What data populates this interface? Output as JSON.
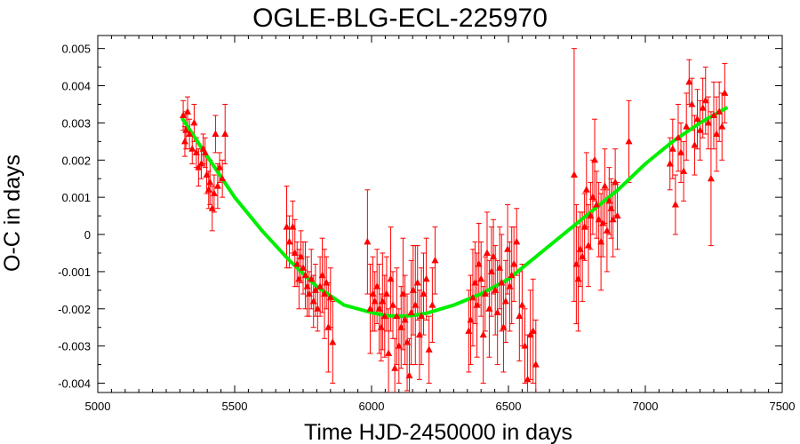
{
  "chart_data": {
    "type": "scatter",
    "title": "OGLE-BLG-ECL-225970",
    "xlabel": "Time HJD-2450000 in days",
    "ylabel": "O-C in days",
    "xlim": [
      5000,
      7500
    ],
    "ylim": [
      -0.00425,
      0.00535
    ],
    "x_ticks": [
      5000,
      5500,
      6000,
      6500,
      7000,
      7500
    ],
    "y_ticks": [
      -0.004,
      -0.003,
      -0.002,
      -0.001,
      0,
      0.001,
      0.002,
      0.003,
      0.004,
      0.005
    ],
    "x_tick_labels": [
      "5000",
      "5500",
      "6000",
      "6500",
      "7000",
      "7500"
    ],
    "y_tick_labels": [
      "-0.004",
      "-0.003",
      "-0.002",
      "-0.001",
      "0",
      "0.001",
      "0.002",
      "0.003",
      "0.004",
      "0.005"
    ],
    "grid": false,
    "colors": {
      "points": "#ff0000",
      "fit": "#00ee00",
      "axes": "#000000"
    },
    "series": [
      {
        "kind": "points_with_error_bars",
        "marker": "triangle",
        "x": [
          5312,
          5318,
          5322,
          5328,
          5335,
          5345,
          5352,
          5360,
          5368,
          5378,
          5385,
          5392,
          5398,
          5405,
          5410,
          5418,
          5425,
          5430,
          5438,
          5445,
          5455,
          5465,
          5690,
          5700,
          5712,
          5720,
          5728,
          5735,
          5742,
          5750,
          5758,
          5765,
          5772,
          5780,
          5788,
          5795,
          5803,
          5812,
          5820,
          5828,
          5835,
          5842,
          5850,
          5858,
          5985,
          5995,
          6005,
          6012,
          6020,
          6028,
          6035,
          6040,
          6048,
          6055,
          6062,
          6070,
          6078,
          6085,
          6092,
          6100,
          6108,
          6115,
          6122,
          6130,
          6138,
          6145,
          6152,
          6160,
          6168,
          6175,
          6182,
          6190,
          6200,
          6210,
          6222,
          6232,
          6355,
          6362,
          6370,
          6378,
          6385,
          6392,
          6400,
          6408,
          6415,
          6422,
          6430,
          6438,
          6445,
          6452,
          6460,
          6468,
          6475,
          6482,
          6490,
          6497,
          6505,
          6512,
          6520,
          6530,
          6540,
          6550,
          6560,
          6570,
          6580,
          6590,
          6600,
          6740,
          6748,
          6755,
          6762,
          6770,
          6778,
          6785,
          6792,
          6800,
          6808,
          6815,
          6822,
          6830,
          6838,
          6845,
          6852,
          6860,
          6868,
          6875,
          6882,
          6890,
          6898,
          6940,
          7090,
          7100,
          7110,
          7120,
          7130,
          7140,
          7150,
          7160,
          7170,
          7180,
          7190,
          7200,
          7210,
          7220,
          7230,
          7240,
          7250,
          7260,
          7270,
          7280,
          7290
        ],
        "y": [
          0.0032,
          0.0025,
          0.0028,
          0.0033,
          0.0027,
          0.0023,
          0.003,
          0.0022,
          0.0018,
          0.0019,
          0.0023,
          0.0022,
          0.0016,
          0.0012,
          0.0014,
          0.0007,
          0.0011,
          0.0027,
          0.0013,
          0.0018,
          0.0015,
          0.0027,
          0.0002,
          -0.0002,
          0.0002,
          -0.0005,
          -0.0008,
          -0.0012,
          -0.0006,
          -0.0009,
          -0.0011,
          -0.0014,
          -0.0016,
          -0.0012,
          -0.0018,
          -0.0015,
          -0.002,
          -0.0014,
          -0.0011,
          -0.0016,
          -0.0013,
          -0.0025,
          -0.0017,
          -0.0029,
          -0.0002,
          -0.002,
          -0.0016,
          -0.0018,
          -0.0014,
          -0.002,
          -0.0025,
          -0.0018,
          -0.0022,
          -0.0016,
          -0.0032,
          -0.0012,
          -0.0019,
          -0.0036,
          -0.0022,
          -0.003,
          -0.0025,
          -0.0016,
          -0.0023,
          -0.0029,
          -0.0038,
          -0.0021,
          -0.0015,
          -0.0019,
          -0.0013,
          -0.0027,
          -0.0022,
          -0.0016,
          -0.0012,
          -0.0031,
          -0.0019,
          -0.0007,
          -0.0026,
          -0.0023,
          -0.0017,
          -0.0013,
          -0.0019,
          -0.0008,
          -0.0012,
          -0.0027,
          -0.0016,
          -0.0005,
          -0.002,
          -0.001,
          -0.0006,
          -0.0015,
          -0.0021,
          -0.0009,
          -0.0013,
          -0.0025,
          -0.0018,
          -0.0004,
          -0.0014,
          -0.0011,
          -0.0008,
          -0.0002,
          -0.0022,
          -0.0019,
          -0.003,
          -0.0039,
          -0.0027,
          -0.0026,
          -0.0035,
          0.0016,
          -0.0008,
          -0.0012,
          -0.0004,
          -0.0006,
          0.0002,
          0.0012,
          -0.0003,
          0.0005,
          0.001,
          0.002,
          0.0008,
          0.0004,
          -0.0002,
          0.0003,
          0.0013,
          0.0001,
          0.0009,
          0.0007,
          0.0004,
          0.0014,
          0.0005,
          0.0025,
          0.0019,
          0.0023,
          0.0008,
          0.0026,
          0.0022,
          0.0017,
          0.0029,
          0.0041,
          0.0035,
          0.0024,
          0.0031,
          0.0028,
          0.0034,
          0.0036,
          0.003,
          0.0015,
          0.0032,
          0.0027,
          0.0033,
          0.0029,
          0.0038
        ],
        "yerr": [
          0.0004,
          0.0004,
          0.0005,
          0.0004,
          0.0004,
          0.0004,
          0.0005,
          0.0004,
          0.0005,
          0.0004,
          0.0004,
          0.0004,
          0.0005,
          0.0005,
          0.0006,
          0.0006,
          0.0005,
          0.0005,
          0.0006,
          0.0004,
          0.0005,
          0.0008,
          0.0011,
          0.0007,
          0.0007,
          0.0009,
          0.0006,
          0.0008,
          0.0007,
          0.0007,
          0.0009,
          0.0008,
          0.0006,
          0.0008,
          0.0007,
          0.0007,
          0.0006,
          0.0008,
          0.001,
          0.0012,
          0.0007,
          0.0012,
          0.0008,
          0.0011,
          0.0014,
          0.0012,
          0.001,
          0.0008,
          0.001,
          0.0012,
          0.0009,
          0.0013,
          0.0011,
          0.001,
          0.0012,
          0.0014,
          0.0009,
          0.0008,
          0.0013,
          0.001,
          0.0011,
          0.0015,
          0.0012,
          0.0013,
          0.001,
          0.0014,
          0.0012,
          0.0016,
          0.001,
          0.0012,
          0.0013,
          0.0011,
          0.0011,
          0.0009,
          0.001,
          0.0009,
          0.0011,
          0.0012,
          0.0013,
          0.0011,
          0.0014,
          0.0011,
          0.001,
          0.0013,
          0.001,
          0.0011,
          0.0013,
          0.0012,
          0.001,
          0.0012,
          0.0014,
          0.0011,
          0.0013,
          0.0012,
          0.0011,
          0.0012,
          0.0012,
          0.0013,
          0.001,
          0.0009,
          0.0012,
          0.0011,
          0.001,
          0.0012,
          0.0012,
          0.0014,
          0.0012,
          0.0034,
          0.0016,
          0.0014,
          0.001,
          0.0012,
          0.0009,
          0.001,
          0.0011,
          0.0009,
          0.001,
          0.0011,
          0.0009,
          0.001,
          0.0013,
          0.0009,
          0.001,
          0.0011,
          0.0009,
          0.0008,
          0.001,
          0.0009,
          0.0009,
          0.0011,
          0.0007,
          0.0008,
          0.0008,
          0.0009,
          0.0008,
          0.0008,
          0.0009,
          0.0006,
          0.0007,
          0.0008,
          0.0008,
          0.0008,
          0.0008,
          0.0009,
          0.0007,
          0.0018,
          0.0009,
          0.001,
          0.0008,
          0.0009,
          0.0008
        ]
      },
      {
        "kind": "fit_curve",
        "x": [
          5310,
          5400,
          5500,
          5600,
          5700,
          5800,
          5900,
          6000,
          6050,
          6100,
          6150,
          6200,
          6300,
          6400,
          6500,
          6600,
          6700,
          6800,
          6900,
          7000,
          7100,
          7200,
          7295
        ],
        "y": [
          0.0031,
          0.0021,
          0.001,
          0.0001,
          -0.0007,
          -0.0014,
          -0.0019,
          -0.0021,
          -0.00218,
          -0.0022,
          -0.00218,
          -0.00212,
          -0.0019,
          -0.0016,
          -0.0012,
          -0.0006,
          0.0,
          0.0006,
          0.0012,
          0.0019,
          0.0025,
          0.003,
          0.0034
        ]
      }
    ]
  }
}
